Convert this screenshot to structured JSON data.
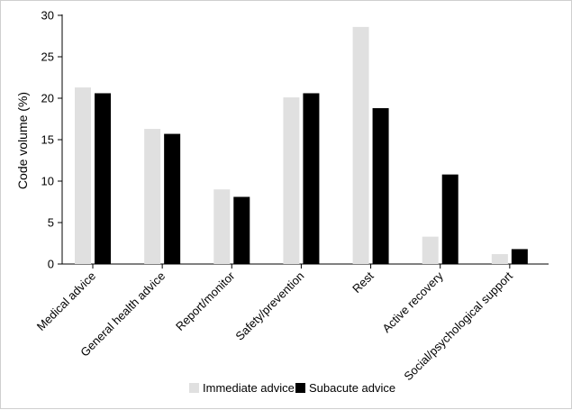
{
  "chart_data": {
    "type": "bar",
    "title": "",
    "xlabel": "",
    "ylabel": "Code volume (%)",
    "ylim": [
      0,
      30
    ],
    "yticks": [
      "0",
      "5",
      "10",
      "15",
      "20",
      "25",
      "30"
    ],
    "categories": [
      "Medical advice",
      "General health advice",
      "Report/monitor",
      "Safety/prevention",
      "Rest",
      "Active recovery",
      "Social/psychological support"
    ],
    "series": [
      {
        "name": "Immediate advice",
        "color": "#e0e0e0",
        "values": [
          21.3,
          16.3,
          9.0,
          20.1,
          28.6,
          3.3,
          1.2
        ]
      },
      {
        "name": "Subacute advice",
        "color": "#000000",
        "values": [
          20.6,
          15.7,
          8.1,
          20.6,
          18.8,
          10.8,
          1.8
        ]
      }
    ],
    "grid": false,
    "legend": "bottom-center"
  }
}
